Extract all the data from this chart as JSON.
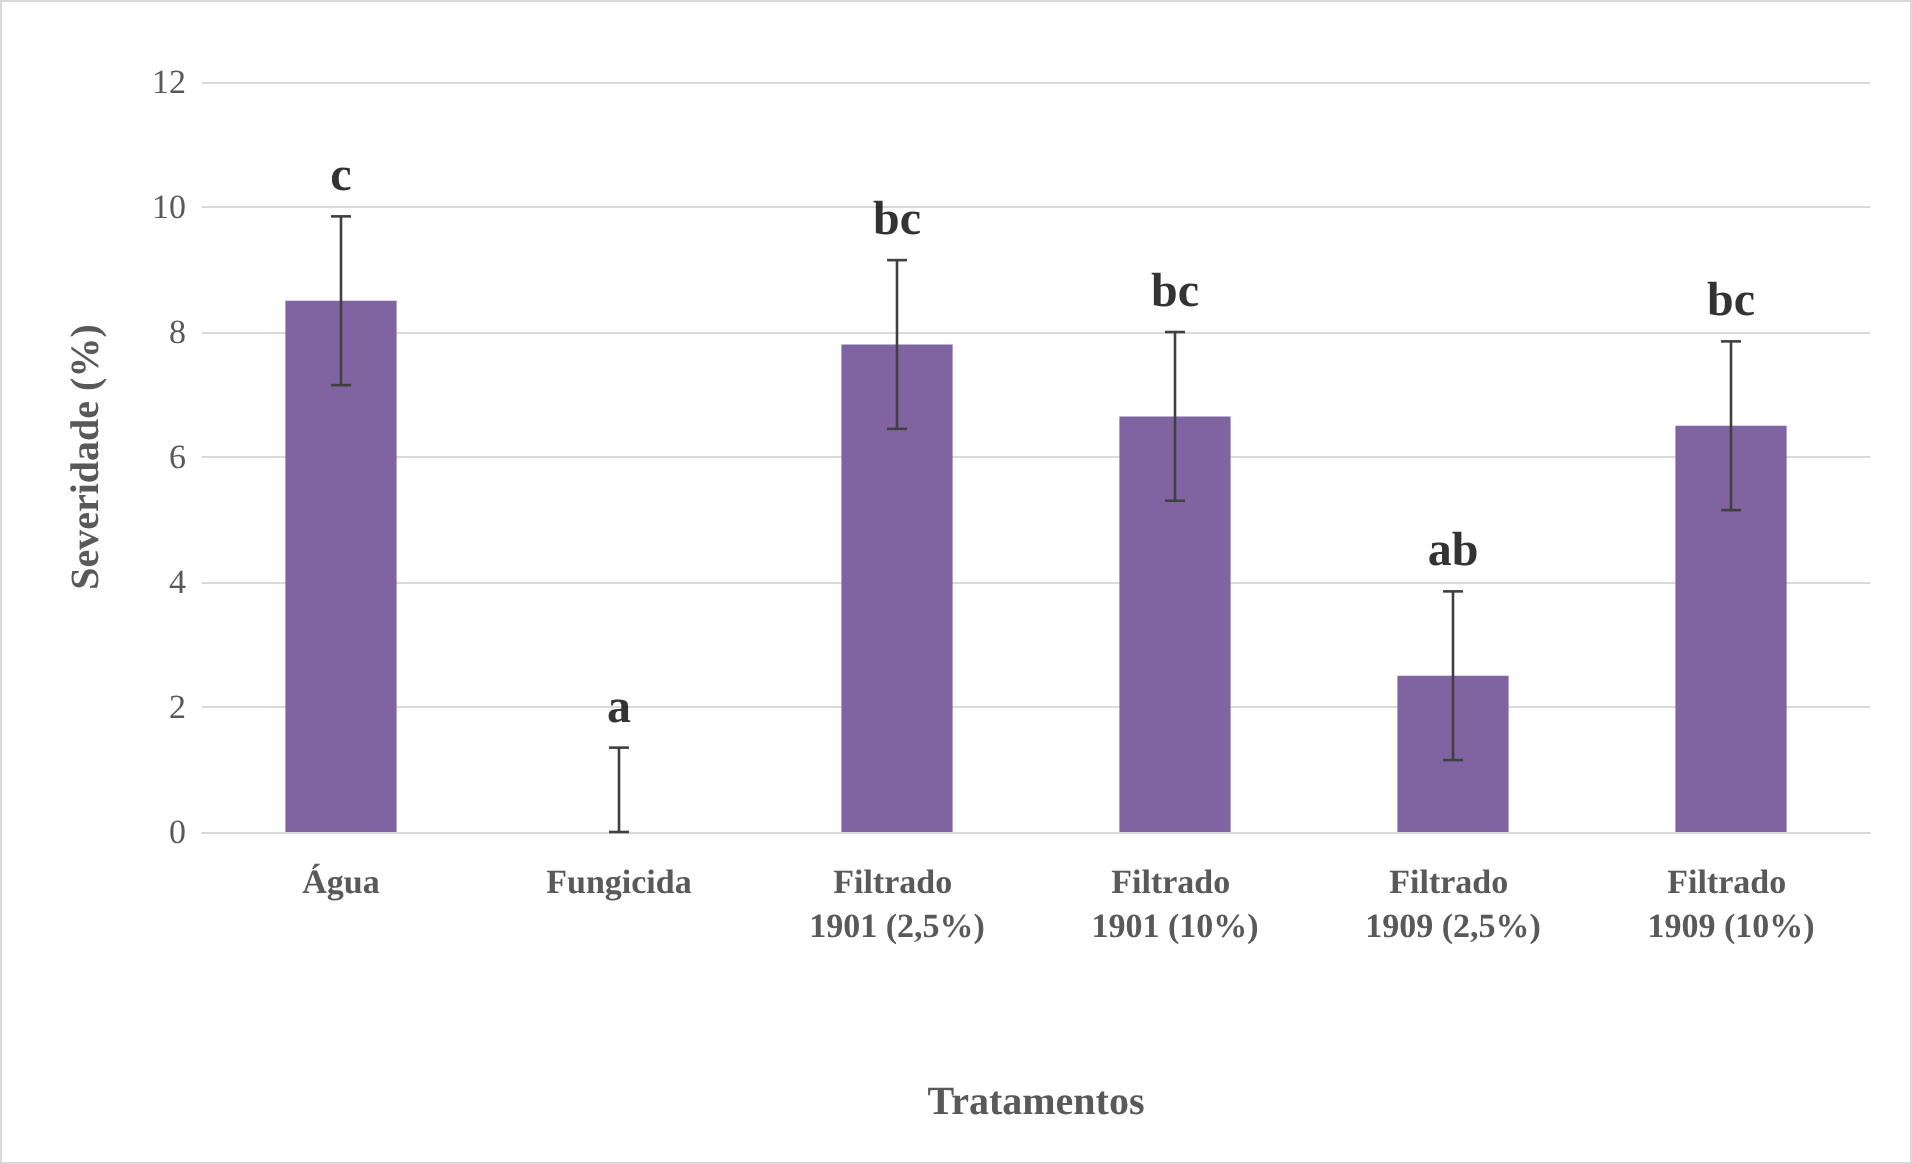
{
  "chart_data": {
    "type": "bar",
    "xlabel": "Tratamentos",
    "ylabel": "Severidade (%)",
    "categories": [
      "Água",
      "Fungicida",
      "Filtrado 1901 (2,5%)",
      "Filtrado 1901 (10%)",
      "Filtrado 1909 (2,5%)",
      "Filtrado 1909 (10%)"
    ],
    "values": [
      8.5,
      0,
      7.8,
      6.65,
      2.5,
      6.5
    ],
    "errors": [
      1.35,
      [
        0,
        1.35
      ],
      1.35,
      1.35,
      1.35,
      1.35
    ],
    "color": "#8064a2",
    "ylim": [
      0,
      12
    ],
    "yticks": [
      0,
      2,
      4,
      6,
      8,
      10,
      12
    ],
    "grid": "y",
    "annotations": [
      "c",
      "a",
      "bc",
      "bc",
      "ab",
      "bc"
    ]
  }
}
